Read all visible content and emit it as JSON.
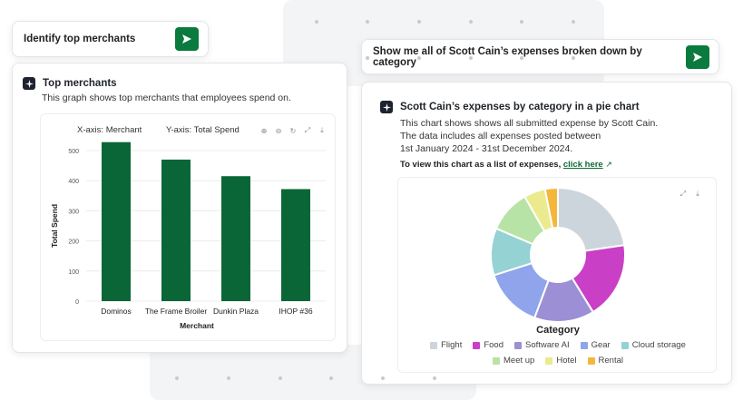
{
  "left_prompt": {
    "text": "Identify top merchants"
  },
  "right_prompt": {
    "text": "Show me all of Scott Cain’s expenses broken down by category"
  },
  "top_merchants": {
    "title": "Top merchants",
    "description": "This graph shows top merchants that employees spend on.",
    "x_axis_prefix": "X-axis:",
    "x_axis_value": "Merchant",
    "y_axis_prefix": "Y-axis:",
    "y_axis_value": "Total Spend",
    "chart_data": {
      "type": "bar",
      "categories": [
        "Dominos",
        "The Frame Broiler",
        "Dunkin Plaza",
        "IHOP #36"
      ],
      "values": [
        528,
        470,
        415,
        372
      ],
      "xlabel": "Merchant",
      "ylabel": "Total Spend",
      "ylim": [
        0,
        500
      ],
      "yticks": [
        0,
        100,
        200,
        300,
        400,
        500
      ],
      "color": "#0b6637",
      "grid": true
    }
  },
  "expenses": {
    "title": "Scott Cain’s expenses by category in a pie chart",
    "desc_line1": "This chart shows shows all submitted expense by Scott Cain.",
    "desc_line2": "The data includes all expenses posted between",
    "desc_line3": "1st January 2024 - 31st December 2024.",
    "list_prefix": "To view this chart as a list of expenses,",
    "list_link": "click here",
    "chart_data": {
      "type": "pie",
      "donut": true,
      "title": "Category",
      "legend_position": "bottom",
      "slices": [
        {
          "name": "Flight",
          "value": 22,
          "color": "#cdd5dc"
        },
        {
          "name": "Food",
          "value": 18,
          "color": "#c93fc6"
        },
        {
          "name": "Software AI",
          "value": 14,
          "color": "#9c8fd6"
        },
        {
          "name": "Gear",
          "value": 14,
          "color": "#8fa4ea"
        },
        {
          "name": "Cloud storage",
          "value": 11,
          "color": "#94d2d4"
        },
        {
          "name": "Meet up",
          "value": 10,
          "color": "#b8e3a6"
        },
        {
          "name": "Hotel",
          "value": 5,
          "color": "#ecea8e"
        },
        {
          "name": "Rental",
          "value": 3,
          "color": "#f4b73b"
        }
      ]
    }
  },
  "colors": {
    "accent": "#0b7a3e",
    "bar": "#0b6637"
  }
}
